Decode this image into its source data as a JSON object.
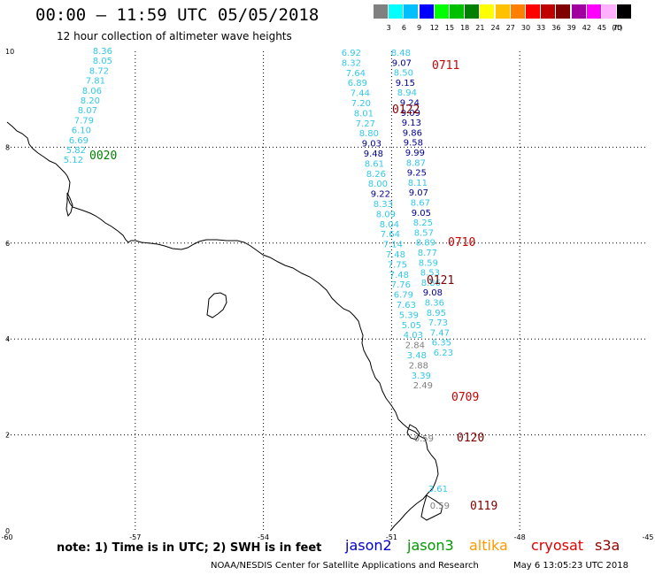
{
  "header": {
    "title": "00:00 – 11:59 UTC 05/05/2018",
    "subtitle": "12 hour collection of altimeter wave heights"
  },
  "legend": {
    "unit_label": "(ft)",
    "swatches": [
      {
        "label": "3",
        "color": "#808080"
      },
      {
        "label": "6",
        "color": "#00ffff"
      },
      {
        "label": "9",
        "color": "#00bfff"
      },
      {
        "label": "12",
        "color": "#0000ff"
      },
      {
        "label": "15",
        "color": "#00ff00"
      },
      {
        "label": "18",
        "color": "#00c000"
      },
      {
        "label": "21",
        "color": "#008000"
      },
      {
        "label": "24",
        "color": "#ffff00"
      },
      {
        "label": "27",
        "color": "#ffc000"
      },
      {
        "label": "30",
        "color": "#ff8000"
      },
      {
        "label": "33",
        "color": "#ff0000"
      },
      {
        "label": "36",
        "color": "#c00000"
      },
      {
        "label": "39",
        "color": "#800000"
      },
      {
        "label": "42",
        "color": "#a000a0"
      },
      {
        "label": "45",
        "color": "#ff00ff"
      },
      {
        "label": "70",
        "color": "#ffb0ff"
      },
      {
        "label": "",
        "color": "#000000"
      }
    ]
  },
  "map": {
    "lon_min": -60,
    "lon_max": -45,
    "lat_min": 0,
    "lat_max": 10,
    "x_ticks": [
      "-60",
      "-57",
      "-54",
      "-51",
      "-48",
      "-45"
    ],
    "y_ticks": [
      "0",
      "2",
      "4",
      "6",
      "8",
      "10"
    ],
    "pass_labels": [
      {
        "text": "0020",
        "color": "#008000"
      },
      {
        "text": "0711",
        "color": "#cc0000"
      },
      {
        "text": "0122",
        "color": "#800000"
      },
      {
        "text": "0710",
        "color": "#cc0000"
      },
      {
        "text": "0121",
        "color": "#800000"
      },
      {
        "text": "0709",
        "color": "#cc0000"
      },
      {
        "text": "0120",
        "color": "#800000"
      },
      {
        "text": "0119",
        "color": "#800000"
      }
    ],
    "tracks": [
      {
        "name": "jason3-0020",
        "values": [
          {
            "v": "8.36",
            "c": "#33c8e8"
          },
          {
            "v": "8.05",
            "c": "#33c8e8"
          },
          {
            "v": "8.72",
            "c": "#33c8e8"
          },
          {
            "v": "7.81",
            "c": "#33c8e8"
          },
          {
            "v": "8.06",
            "c": "#33c8e8"
          },
          {
            "v": "8.20",
            "c": "#33c8e8"
          },
          {
            "v": "8.07",
            "c": "#33c8e8"
          },
          {
            "v": "7.79",
            "c": "#33c8e8"
          },
          {
            "v": "6.10",
            "c": "#33c8e8"
          },
          {
            "v": "6.69",
            "c": "#33c8e8"
          },
          {
            "v": "5.82",
            "c": "#33c8e8"
          },
          {
            "v": "5.12",
            "c": "#33c8e8"
          }
        ]
      },
      {
        "name": "track-a",
        "values": [
          {
            "v": "6.92",
            "c": "#33c8e8"
          },
          {
            "v": "8.32",
            "c": "#33c8e8"
          },
          {
            "v": "7.64",
            "c": "#33c8e8"
          },
          {
            "v": "6.89",
            "c": "#33c8e8"
          },
          {
            "v": "7.44",
            "c": "#33c8e8"
          },
          {
            "v": "7.20",
            "c": "#33c8e8"
          },
          {
            "v": "8.01",
            "c": "#33c8e8"
          },
          {
            "v": "7.27",
            "c": "#33c8e8"
          },
          {
            "v": "8.80",
            "c": "#33c8e8"
          },
          {
            "v": "9.03",
            "c": "#000090"
          },
          {
            "v": "9.48",
            "c": "#000090"
          },
          {
            "v": "8.61",
            "c": "#33c8e8"
          },
          {
            "v": "8.26",
            "c": "#33c8e8"
          },
          {
            "v": "8.00",
            "c": "#33c8e8"
          },
          {
            "v": "9.22",
            "c": "#000090"
          },
          {
            "v": "8.33",
            "c": "#33c8e8"
          },
          {
            "v": "8.09",
            "c": "#33c8e8"
          },
          {
            "v": "8.04",
            "c": "#33c8e8"
          },
          {
            "v": "7.64",
            "c": "#33c8e8"
          },
          {
            "v": "7.14",
            "c": "#33c8e8"
          },
          {
            "v": "7.48",
            "c": "#33c8e8"
          },
          {
            "v": "7.75",
            "c": "#33c8e8"
          },
          {
            "v": "7.48",
            "c": "#33c8e8"
          },
          {
            "v": "7.76",
            "c": "#33c8e8"
          },
          {
            "v": "6.79",
            "c": "#33c8e8"
          },
          {
            "v": "7.63",
            "c": "#33c8e8"
          },
          {
            "v": "5.39",
            "c": "#33c8e8"
          },
          {
            "v": "5.05",
            "c": "#33c8e8"
          },
          {
            "v": "4.03",
            "c": "#33c8e8"
          },
          {
            "v": "2.84",
            "c": "#808080"
          },
          {
            "v": "3.48",
            "c": "#33c8e8"
          },
          {
            "v": "2.88",
            "c": "#808080"
          },
          {
            "v": "3.39",
            "c": "#33c8e8"
          },
          {
            "v": "2.49",
            "c": "#808080"
          },
          {
            "v": "0.59",
            "c": "#808080"
          },
          {
            "v": "3.61",
            "c": "#33c8e8"
          },
          {
            "v": "0.59",
            "c": "#808080"
          }
        ]
      },
      {
        "name": "track-b",
        "values": [
          {
            "v": "8.48",
            "c": "#33c8e8"
          },
          {
            "v": "9.07",
            "c": "#000090"
          },
          {
            "v": "8.50",
            "c": "#33c8e8"
          },
          {
            "v": "9.15",
            "c": "#000090"
          },
          {
            "v": "8.94",
            "c": "#33c8e8"
          },
          {
            "v": "9.24",
            "c": "#000090"
          },
          {
            "v": "9.09",
            "c": "#000090"
          },
          {
            "v": "9.13",
            "c": "#000090"
          },
          {
            "v": "9.86",
            "c": "#000090"
          },
          {
            "v": "9.58",
            "c": "#000090"
          },
          {
            "v": "9.99",
            "c": "#000090"
          },
          {
            "v": "8.87",
            "c": "#33c8e8"
          },
          {
            "v": "9.25",
            "c": "#000090"
          },
          {
            "v": "8.11",
            "c": "#33c8e8"
          },
          {
            "v": "9.07",
            "c": "#000090"
          },
          {
            "v": "8.67",
            "c": "#33c8e8"
          },
          {
            "v": "9.05",
            "c": "#000090"
          },
          {
            "v": "8.25",
            "c": "#33c8e8"
          },
          {
            "v": "8.57",
            "c": "#33c8e8"
          },
          {
            "v": "8.89",
            "c": "#33c8e8"
          },
          {
            "v": "8.77",
            "c": "#33c8e8"
          },
          {
            "v": "8.59",
            "c": "#33c8e8"
          },
          {
            "v": "8.53",
            "c": "#33c8e8"
          },
          {
            "v": "8.86",
            "c": "#33c8e8"
          },
          {
            "v": "9.08",
            "c": "#000090"
          },
          {
            "v": "8.36",
            "c": "#33c8e8"
          },
          {
            "v": "8.95",
            "c": "#33c8e8"
          },
          {
            "v": "7.73",
            "c": "#33c8e8"
          },
          {
            "v": "7.47",
            "c": "#33c8e8"
          },
          {
            "v": "6.35",
            "c": "#33c8e8"
          },
          {
            "v": "6.23",
            "c": "#33c8e8"
          }
        ]
      }
    ]
  },
  "footer": {
    "note": "note: 1) Time is in UTC; 2) SWH is in feet",
    "satellites": [
      {
        "name": "jason2",
        "color": "#0000cc"
      },
      {
        "name": "jason3",
        "color": "#009900"
      },
      {
        "name": "altika",
        "color": "#ff9900"
      },
      {
        "name": "cryosat",
        "color": "#dd0000"
      },
      {
        "name": "s3a",
        "color": "#990000"
      }
    ],
    "credit": "NOAA/NESDIS Center for Satellite Applications and Research",
    "timestamp": "May  6 13:05:23 UTC 2018"
  }
}
